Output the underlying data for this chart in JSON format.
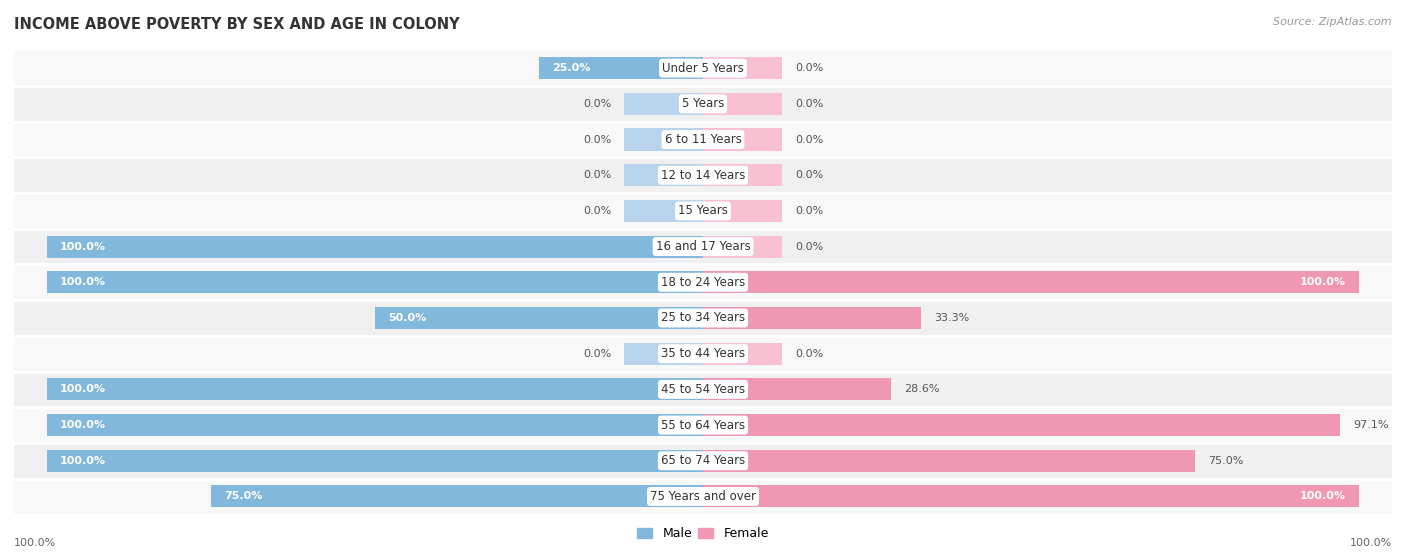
{
  "title": "INCOME ABOVE POVERTY BY SEX AND AGE IN COLONY",
  "source": "Source: ZipAtlas.com",
  "categories": [
    "Under 5 Years",
    "5 Years",
    "6 to 11 Years",
    "12 to 14 Years",
    "15 Years",
    "16 and 17 Years",
    "18 to 24 Years",
    "25 to 34 Years",
    "35 to 44 Years",
    "45 to 54 Years",
    "55 to 64 Years",
    "65 to 74 Years",
    "75 Years and over"
  ],
  "male_values": [
    25.0,
    0.0,
    0.0,
    0.0,
    0.0,
    100.0,
    100.0,
    50.0,
    0.0,
    100.0,
    100.0,
    100.0,
    75.0
  ],
  "female_values": [
    0.0,
    0.0,
    0.0,
    0.0,
    0.0,
    0.0,
    100.0,
    33.3,
    0.0,
    28.6,
    97.1,
    75.0,
    100.0
  ],
  "male_color": "#82B8DC",
  "female_color": "#F097B2",
  "male_zero_color": "#B8D4EC",
  "female_zero_color": "#F8C0D0",
  "background_color": "#ffffff",
  "row_alt_color": "#F0F0F0",
  "row_main_color": "#F8F8F8",
  "title_fontsize": 10.5,
  "label_fontsize": 8.5,
  "value_fontsize": 8.0,
  "legend_male": "Male",
  "legend_female": "Female",
  "xlim": 105,
  "zero_stub": 12
}
